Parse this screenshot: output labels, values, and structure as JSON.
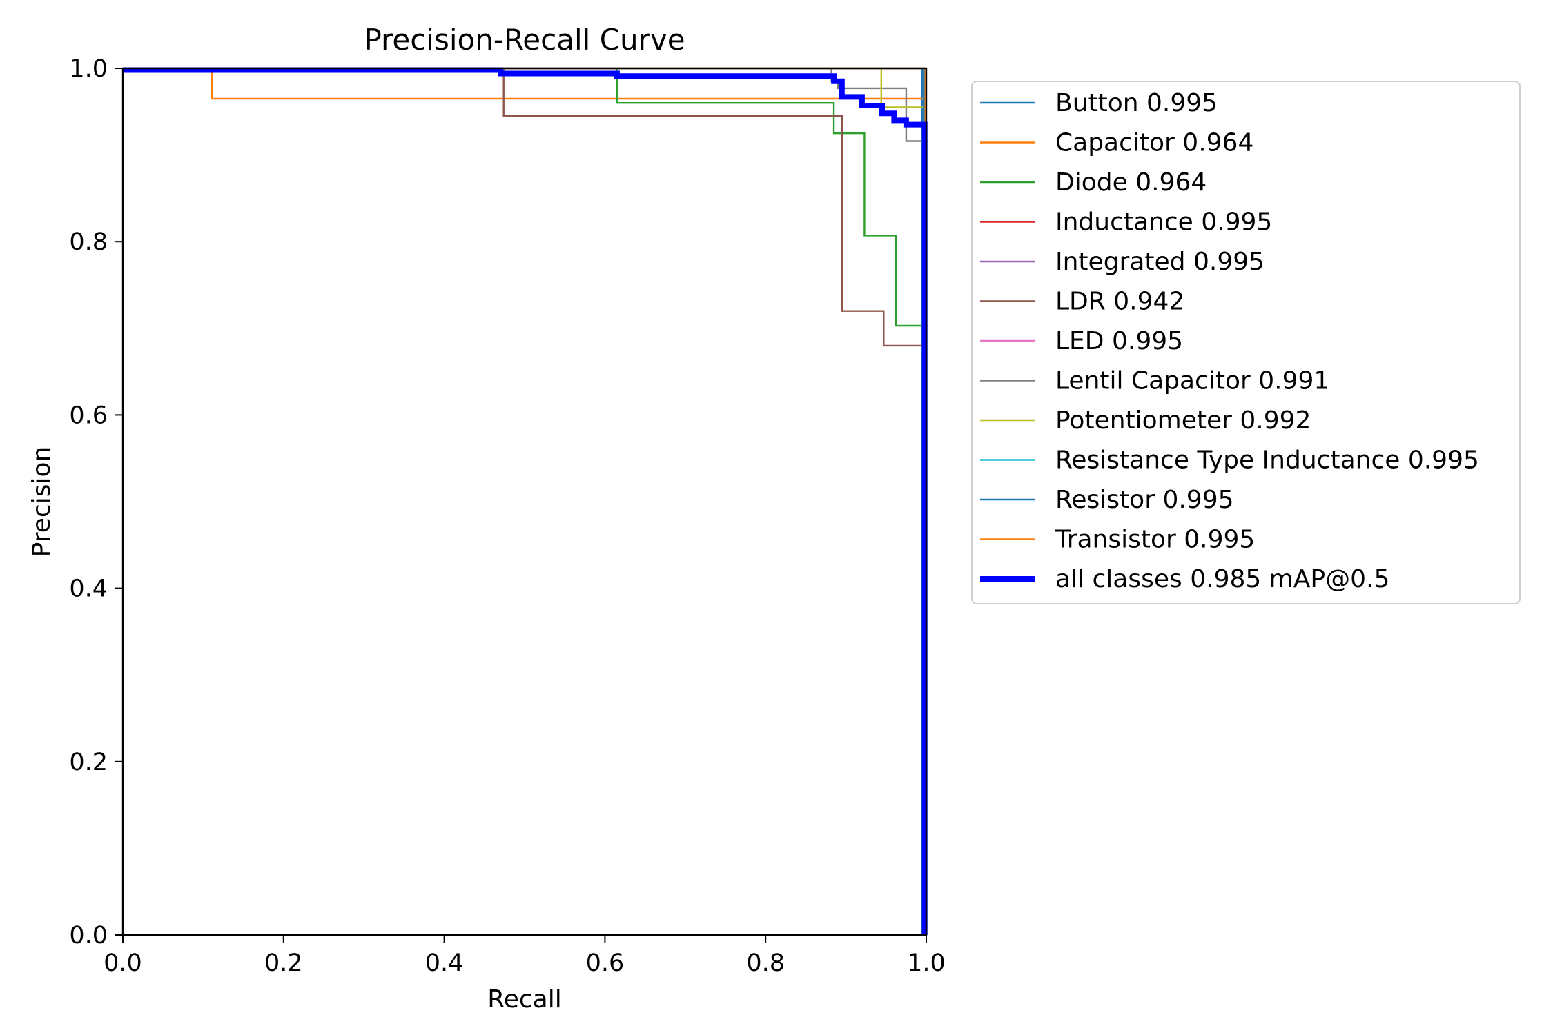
{
  "chart_data": {
    "type": "line",
    "title": "Precision-Recall Curve",
    "xlabel": "Recall",
    "ylabel": "Precision",
    "xlim": [
      0,
      1
    ],
    "ylim": [
      0,
      1
    ],
    "xticks": [
      "0.0",
      "0.2",
      "0.4",
      "0.6",
      "0.8",
      "1.0"
    ],
    "yticks": [
      "0.0",
      "0.2",
      "0.4",
      "0.6",
      "0.8",
      "1.0"
    ],
    "grid": false,
    "legend_position": "outside-right",
    "series": [
      {
        "name": "Button 0.995",
        "color": "#1f77b4",
        "width": "thin",
        "x": [
          0,
          0.995,
          0.995,
          1.0
        ],
        "y": [
          1.0,
          1.0,
          0.0,
          0.0
        ]
      },
      {
        "name": "Capacitor 0.964",
        "color": "#ff7f0e",
        "width": "thin",
        "x": [
          0,
          0.111,
          0.111,
          0.998,
          0.998
        ],
        "y": [
          1.0,
          1.0,
          0.965,
          0.965,
          0.0
        ]
      },
      {
        "name": "Diode 0.964",
        "color": "#2ca02c",
        "width": "thin",
        "x": [
          0,
          0.615,
          0.615,
          0.885,
          0.885,
          0.923,
          0.923,
          0.962,
          0.962,
          1.0,
          1.0
        ],
        "y": [
          1.0,
          1.0,
          0.96,
          0.96,
          0.925,
          0.925,
          0.807,
          0.807,
          0.703,
          0.703,
          0.0
        ]
      },
      {
        "name": "Inductance 0.995",
        "color": "#d62728",
        "width": "thin",
        "x": [
          0,
          0.997,
          0.997
        ],
        "y": [
          1.0,
          1.0,
          0.0
        ]
      },
      {
        "name": "Integrated 0.995",
        "color": "#9467bd",
        "width": "thin",
        "x": [
          0,
          0.997,
          0.997
        ],
        "y": [
          1.0,
          1.0,
          0.0
        ]
      },
      {
        "name": "LDR 0.942",
        "color": "#8c564b",
        "width": "thin",
        "x": [
          0,
          0.474,
          0.474,
          0.895,
          0.895,
          0.947,
          0.947,
          1.0,
          1.0
        ],
        "y": [
          1.0,
          1.0,
          0.945,
          0.945,
          0.72,
          0.72,
          0.68,
          0.68,
          0.0
        ]
      },
      {
        "name": "LED 0.995",
        "color": "#e377c2",
        "width": "thin",
        "x": [
          0,
          0.997,
          0.997
        ],
        "y": [
          1.0,
          1.0,
          0.0
        ]
      },
      {
        "name": "Lentil Capacitor 0.991",
        "color": "#7f7f7f",
        "width": "thin",
        "x": [
          0,
          0.882,
          0.882,
          0.89,
          0.89,
          0.975,
          0.975,
          0.998,
          0.998
        ],
        "y": [
          1.0,
          1.0,
          0.985,
          0.985,
          0.977,
          0.977,
          0.916,
          0.916,
          0.0
        ]
      },
      {
        "name": "Potentiometer 0.992",
        "color": "#bcbd22",
        "width": "thin",
        "x": [
          0,
          0.944,
          0.944,
          0.999,
          0.999
        ],
        "y": [
          1.0,
          1.0,
          0.955,
          0.955,
          0.0
        ]
      },
      {
        "name": "Resistance Type Inductance 0.995",
        "color": "#17becf",
        "width": "thin",
        "x": [
          0,
          0.997,
          0.997
        ],
        "y": [
          1.0,
          1.0,
          0.0
        ]
      },
      {
        "name": "Resistor 0.995",
        "color": "#1f77b4",
        "width": "thin",
        "x": [
          0,
          0.997,
          0.997
        ],
        "y": [
          1.0,
          1.0,
          0.0
        ]
      },
      {
        "name": "Transistor 0.995",
        "color": "#ff7f0e",
        "width": "thin",
        "x": [
          0,
          0.999,
          0.999
        ],
        "y": [
          1.0,
          1.0,
          0.0
        ]
      },
      {
        "name": "all classes 0.985 mAP@0.5",
        "color": "#0000ff",
        "width": "thick",
        "x": [
          0,
          0.47,
          0.47,
          0.615,
          0.615,
          0.885,
          0.885,
          0.895,
          0.895,
          0.92,
          0.92,
          0.945,
          0.945,
          0.96,
          0.96,
          0.975,
          0.975,
          0.998,
          0.998
        ],
        "y": [
          0.998,
          0.998,
          0.994,
          0.994,
          0.991,
          0.991,
          0.985,
          0.985,
          0.967,
          0.967,
          0.957,
          0.957,
          0.948,
          0.948,
          0.94,
          0.94,
          0.935,
          0.935,
          0.0
        ]
      }
    ]
  }
}
